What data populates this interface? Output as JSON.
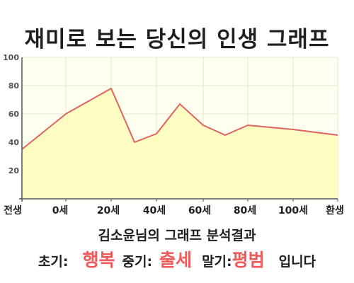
{
  "title": "재미로 보는 당신의 인생 그래프",
  "summary": "김소윤님의 그래프 분석결과",
  "result": {
    "early_label": "초기:",
    "early_value": "행복",
    "mid_label": "중기:",
    "mid_value": "출세",
    "late_label": "말기:",
    "late_value": "평범",
    "ending": "입니다"
  },
  "colors": {
    "line": "#e06262",
    "fill": "#fffdc2",
    "plot_bg": "#fffff0",
    "grid": "#e4e4cf",
    "accent_text": "#f25a5a"
  },
  "chart_data": {
    "type": "area",
    "x_tick_labels": [
      "전생",
      "0세",
      "20세",
      "40세",
      "60세",
      "80세",
      "100세",
      "환생"
    ],
    "y_ticks": [
      20,
      40,
      60,
      80,
      100
    ],
    "ylim": [
      0,
      100
    ],
    "grid": true,
    "series": [
      {
        "points": [
          {
            "x": "전생",
            "y": 35
          },
          {
            "x": "0세",
            "y": 60
          },
          {
            "x": "20세",
            "y": 78
          },
          {
            "x": "30세",
            "y": 40
          },
          {
            "x": "40세",
            "y": 46
          },
          {
            "x": "50세",
            "y": 67
          },
          {
            "x": "60세",
            "y": 52
          },
          {
            "x": "70세",
            "y": 45
          },
          {
            "x": "80세",
            "y": 52
          },
          {
            "x": "100세",
            "y": 49
          },
          {
            "x": "환생",
            "y": 45
          }
        ]
      }
    ]
  }
}
